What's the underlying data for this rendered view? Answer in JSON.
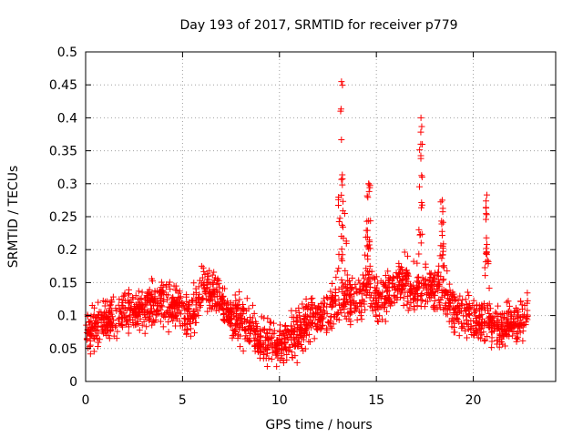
{
  "chart_data": {
    "type": "scatter",
    "title": "Day 193 of 2017, SRMTID for receiver p779",
    "xlabel": "GPS time / hours",
    "ylabel": "SRMTID / TECUs",
    "xlim": [
      0,
      24.25
    ],
    "ylim": [
      0,
      0.5
    ],
    "xticks": [
      0,
      5,
      10,
      15,
      20
    ],
    "yticks": [
      0,
      0.05,
      0.1,
      0.15,
      0.2,
      0.25,
      0.3,
      0.35,
      0.4,
      0.45,
      0.5
    ],
    "xtick_labels": [
      "0",
      "5",
      "10",
      "15",
      "20"
    ],
    "ytick_labels": [
      "0",
      "0.05",
      "0.1",
      "0.15",
      "0.2",
      "0.25",
      "0.3",
      "0.35",
      "0.4",
      "0.45",
      "0.5"
    ],
    "grid": true,
    "marker": "+",
    "series": [
      {
        "name": "p779",
        "color": "#ff0000",
        "envelope_x": [
          0,
          0.5,
          1,
          1.5,
          2,
          2.5,
          3,
          3.5,
          4,
          4.5,
          5,
          5.5,
          6,
          6.5,
          7,
          7.5,
          8,
          8.5,
          9,
          9.5,
          10,
          10.5,
          11,
          11.5,
          12,
          12.5,
          13,
          13.5,
          14,
          14.5,
          15,
          15.5,
          16,
          16.5,
          17,
          17.5,
          18,
          18.5,
          19,
          19.5,
          20,
          20.5,
          21,
          21.5,
          22,
          22.8
        ],
        "envelope_y": [
          0.075,
          0.085,
          0.09,
          0.1,
          0.105,
          0.11,
          0.115,
          0.115,
          0.12,
          0.115,
          0.11,
          0.1,
          0.14,
          0.135,
          0.12,
          0.1,
          0.095,
          0.085,
          0.065,
          0.06,
          0.06,
          0.065,
          0.075,
          0.09,
          0.1,
          0.105,
          0.125,
          0.13,
          0.12,
          0.14,
          0.12,
          0.13,
          0.15,
          0.15,
          0.13,
          0.14,
          0.14,
          0.13,
          0.11,
          0.1,
          0.095,
          0.09,
          0.08,
          0.08,
          0.09,
          0.1
        ],
        "spread": 0.032,
        "count": 2000,
        "spikes": [
          {
            "x": 13.2,
            "peak": 0.455,
            "width": 0.35
          },
          {
            "x": 17.3,
            "peak": 0.4,
            "width": 0.3
          },
          {
            "x": 20.7,
            "peak": 0.283,
            "width": 0.2
          },
          {
            "x": 18.4,
            "peak": 0.275,
            "width": 0.3
          },
          {
            "x": 14.6,
            "peak": 0.3,
            "width": 0.3
          }
        ],
        "x_start": 0,
        "x_end": 22.8
      }
    ]
  }
}
